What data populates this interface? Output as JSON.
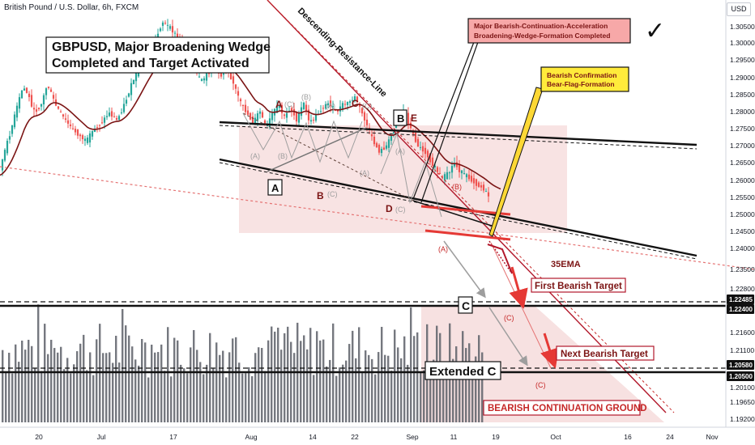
{
  "header": {
    "title": "British Pound / U.S. Dollar, 6h, FXCM",
    "currency": "USD"
  },
  "chart_data": {
    "type": "candlestick",
    "symbol": "GBPUSD",
    "timeframe": "6h",
    "y_range": [
      1.1872,
      1.311
    ],
    "x_ticks": [
      "20",
      "Jul",
      "17",
      "Aug",
      "14",
      "22",
      "Sep",
      "11",
      "19",
      "Oct",
      "16",
      "24",
      "Nov"
    ],
    "y_ticks": [
      "1.30500",
      "1.30000",
      "1.29500",
      "1.29000",
      "1.28500",
      "1.28000",
      "1.27500",
      "1.27000",
      "1.26500",
      "1.26000",
      "1.25500",
      "1.25000",
      "1.24500",
      "1.24000",
      "1.23500",
      "1.22800",
      "1.21600",
      "1.21100",
      "1.20100",
      "1.19650",
      "1.19200"
    ],
    "price_tags": [
      "1.22485",
      "1.22400",
      "1.20580",
      "1.20500"
    ],
    "ema_label": "35EMA",
    "title_box": [
      "GBPUSD, Major Broadening Wedge",
      "Completed and Target Activated"
    ],
    "callouts": {
      "pink": [
        "Major Bearish-Continuation-Acceleration",
        "Broadening-Wedge-Formation Completed"
      ],
      "yellow": [
        "Bearish Confirmation",
        "Bear-Flag-Formation"
      ],
      "resistance": "Descending-Resistance-Line"
    },
    "targets": {
      "first": "First Bearish Target",
      "next": "Next Bearish Target",
      "ground": "BEARISH CONTINUATION GROUND",
      "c_box": "C",
      "extended_c": "Extended C"
    },
    "wave_labels": {
      "a_box": "A",
      "b_box": "B",
      "a": "A",
      "b": "B",
      "c": "C",
      "d": "D",
      "e": "E",
      "sub_a": "(A)",
      "sub_b": "(B)",
      "sub_c": "(C)",
      "red_a": "(A)",
      "red_b": "(B)",
      "red_c": "(C)"
    },
    "checkmark": "✓",
    "colors": {
      "bull": "#26a69a",
      "bear": "#ef5350",
      "ema": "#7b1414",
      "dark_red": "#b2182b",
      "pink_box": "#f7a8a8",
      "yellow_box": "#ffeb3b",
      "zone": "#f5d9d9"
    }
  }
}
